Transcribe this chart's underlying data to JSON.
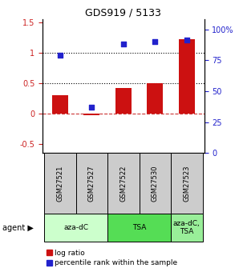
{
  "title": "GDS919 / 5133",
  "samples": [
    "GSM27521",
    "GSM27527",
    "GSM27522",
    "GSM27530",
    "GSM27523"
  ],
  "log_ratio": [
    0.3,
    -0.03,
    0.42,
    0.5,
    1.22
  ],
  "percentile_rank": [
    79,
    37,
    88,
    90,
    91
  ],
  "bar_color": "#cc1111",
  "dot_color": "#2222cc",
  "ylim_left": [
    -0.65,
    1.55
  ],
  "ylim_right": [
    0,
    108
  ],
  "yticks_left": [
    -0.5,
    0.0,
    0.5,
    1.0,
    1.5
  ],
  "ytick_labels_left": [
    "-0.5",
    "0",
    "0.5",
    "1",
    "1.5"
  ],
  "yticks_right": [
    0,
    25,
    50,
    75,
    100
  ],
  "ytick_labels_right": [
    "0",
    "25",
    "50",
    "75",
    "100%"
  ],
  "hlines": [
    0.0,
    0.5,
    1.0
  ],
  "hline_styles": [
    "dashed",
    "dotted",
    "dotted"
  ],
  "hline_colors": [
    "#cc3333",
    "#000000",
    "#000000"
  ],
  "bar_width": 0.5,
  "sample_box_color": "#cccccc",
  "agent_groups": [
    {
      "label": "aza-dC",
      "start": 0,
      "end": 1,
      "color": "#ccffcc"
    },
    {
      "label": "TSA",
      "start": 2,
      "end": 3,
      "color": "#55dd55"
    },
    {
      "label": "aza-dC,\nTSA",
      "start": 4,
      "end": 4,
      "color": "#99ee99"
    }
  ],
  "legend_labels": [
    "log ratio",
    "percentile rank within the sample"
  ],
  "legend_colors": [
    "#cc1111",
    "#2222cc"
  ]
}
